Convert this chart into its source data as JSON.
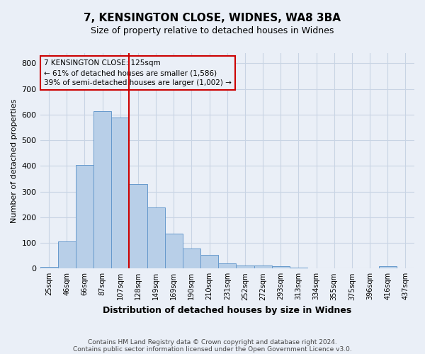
{
  "title_line1": "7, KENSINGTON CLOSE, WIDNES, WA8 3BA",
  "title_line2": "Size of property relative to detached houses in Widnes",
  "xlabel": "Distribution of detached houses by size in Widnes",
  "ylabel": "Number of detached properties",
  "bin_labels": [
    "25sqm",
    "46sqm",
    "66sqm",
    "87sqm",
    "107sqm",
    "128sqm",
    "149sqm",
    "169sqm",
    "190sqm",
    "210sqm",
    "231sqm",
    "252sqm",
    "272sqm",
    "293sqm",
    "313sqm",
    "334sqm",
    "355sqm",
    "375sqm",
    "396sqm",
    "416sqm",
    "437sqm"
  ],
  "bar_values": [
    7,
    107,
    403,
    615,
    590,
    330,
    238,
    135,
    79,
    52,
    20,
    12,
    12,
    8,
    4,
    1,
    0,
    0,
    0,
    8,
    0
  ],
  "bar_color": "#b8cfe8",
  "bar_edge_color": "#6699cc",
  "vline_x_idx": 5,
  "vline_color": "#cc0000",
  "annotation_line1": "7 KENSINGTON CLOSE: 125sqm",
  "annotation_line2": "← 61% of detached houses are smaller (1,586)",
  "annotation_line3": "39% of semi-detached houses are larger (1,002) →",
  "annotation_box_color": "#cc0000",
  "ylim": [
    0,
    840
  ],
  "yticks": [
    0,
    100,
    200,
    300,
    400,
    500,
    600,
    700,
    800
  ],
  "footnote_line1": "Contains HM Land Registry data © Crown copyright and database right 2024.",
  "footnote_line2": "Contains public sector information licensed under the Open Government Licence v3.0.",
  "grid_color": "#c8d4e4",
  "background_color": "#eaeff7"
}
